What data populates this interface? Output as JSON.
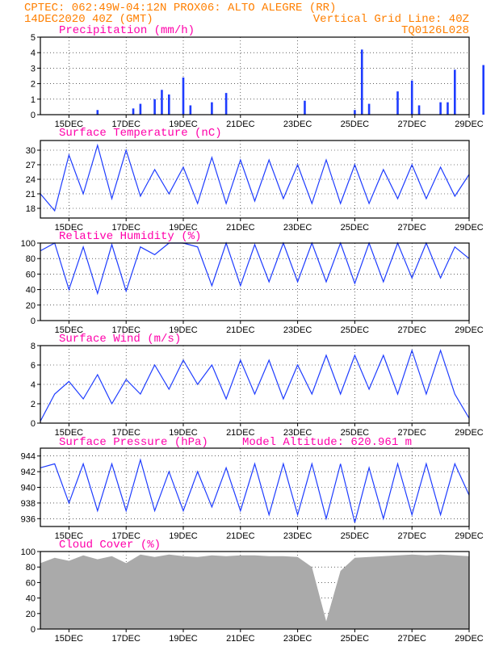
{
  "header": {
    "line1_left": "CPTEC:  062:49W-04:12N  PROX06: ALTO ALEGRE (RR)",
    "line2_left": "14DEC2020 40Z (GMT)",
    "line2_right": "Vertical Grid Line: 40Z",
    "line3_right": "TQ0126L028"
  },
  "colors": {
    "header": "#ff7f00",
    "panel_title": "#ff00aa",
    "series": "#1e3cff",
    "cloud": "#aaaaaa",
    "grid": "#000000"
  },
  "x_labels": [
    "15DEC",
    "17DEC",
    "19DEC",
    "21DEC",
    "23DEC",
    "25DEC",
    "27DEC",
    "29DEC"
  ],
  "chart_data": [
    {
      "type": "bar",
      "title": "Precipitation (mm/h)",
      "ylim": [
        0,
        5
      ],
      "yticks": [
        "0",
        "1",
        "2",
        "3",
        "4",
        "5"
      ],
      "x": [
        "16DEC",
        "17DEC",
        "17DEC",
        "18DEC",
        "18DEC",
        "18DEC",
        "19DEC",
        "19DEC",
        "20DEC",
        "20DEC",
        "23DEC",
        "25DEC",
        "25DEC",
        "25DEC",
        "26DEC",
        "27DEC",
        "27DEC",
        "28DEC",
        "28DEC",
        "28DEC",
        "29DEC"
      ],
      "values": [
        0.3,
        0.4,
        0.7,
        1.0,
        1.6,
        1.3,
        2.4,
        0.6,
        1.4,
        0.8,
        0.9,
        0.7,
        0.3,
        4.2,
        1.5,
        2.2,
        0.6,
        2.9,
        0.8,
        0.8,
        3.2
      ]
    },
    {
      "type": "line",
      "title": "Surface Temperature (nC)",
      "ylim": [
        16,
        32
      ],
      "yticks": [
        "18",
        "21",
        "24",
        "27",
        "30"
      ],
      "x_day": [
        14.0,
        14.5,
        15.0,
        15.5,
        16.0,
        16.5,
        17.0,
        17.5,
        18.0,
        18.5,
        19.0,
        19.5,
        20.0,
        20.5,
        21.0,
        21.5,
        22.0,
        22.5,
        23.0,
        23.5,
        24.0,
        24.5,
        25.0,
        25.5,
        26.0,
        26.5,
        27.0,
        27.5,
        28.0,
        28.5,
        29.0
      ],
      "values": [
        21,
        17.5,
        29,
        21,
        31,
        20,
        30,
        20.5,
        26,
        21,
        26.5,
        19,
        28.5,
        19,
        28,
        19.5,
        28,
        20,
        27,
        19,
        28,
        19,
        27,
        19,
        26,
        20,
        27,
        20,
        26.5,
        20.5,
        25
      ]
    },
    {
      "type": "line",
      "title": "Relative Humidity (%)",
      "ylim": [
        0,
        100
      ],
      "yticks": [
        "0",
        "20",
        "40",
        "60",
        "80",
        "100"
      ],
      "x_day": [
        14.0,
        14.5,
        15.0,
        15.5,
        16.0,
        16.5,
        17.0,
        17.5,
        18.0,
        18.5,
        19.0,
        19.5,
        20.0,
        20.5,
        21.0,
        21.5,
        22.0,
        22.5,
        23.0,
        23.5,
        24.0,
        24.5,
        25.0,
        25.5,
        26.0,
        26.5,
        27.0,
        27.5,
        28.0,
        28.5,
        29.0
      ],
      "values": [
        90,
        100,
        40,
        95,
        35,
        98,
        38,
        95,
        85,
        100,
        100,
        95,
        45,
        100,
        45,
        98,
        50,
        100,
        50,
        100,
        50,
        100,
        48,
        100,
        50,
        100,
        55,
        100,
        55,
        95,
        80
      ]
    },
    {
      "type": "line",
      "title": "Surface Wind (m/s)",
      "ylim": [
        0,
        8
      ],
      "yticks": [
        "0",
        "2",
        "4",
        "6",
        "8"
      ],
      "x_day": [
        14.0,
        14.5,
        15.0,
        15.5,
        16.0,
        16.5,
        17.0,
        17.5,
        18.0,
        18.5,
        19.0,
        19.5,
        20.0,
        20.5,
        21.0,
        21.5,
        22.0,
        22.5,
        23.0,
        23.5,
        24.0,
        24.5,
        25.0,
        25.5,
        26.0,
        26.5,
        27.0,
        27.5,
        28.0,
        28.5,
        29.0
      ],
      "values": [
        0.2,
        3.0,
        4.3,
        2.5,
        5.0,
        2.0,
        4.5,
        3.0,
        6.0,
        3.5,
        6.5,
        4.0,
        6.0,
        2.5,
        6.5,
        3.0,
        6.5,
        2.5,
        6.0,
        3.0,
        7.0,
        3.0,
        7.0,
        3.5,
        7.0,
        3.0,
        7.5,
        3.0,
        7.5,
        3.0,
        0.5
      ]
    },
    {
      "type": "line",
      "title": "Surface Pressure (hPa)",
      "annotation": "Model Altitude: 620.961 m",
      "ylim": [
        935,
        945
      ],
      "yticks": [
        "936",
        "938",
        "940",
        "942",
        "944"
      ],
      "x_day": [
        14.0,
        14.5,
        15.0,
        15.5,
        16.0,
        16.5,
        17.0,
        17.5,
        18.0,
        18.5,
        19.0,
        19.5,
        20.0,
        20.5,
        21.0,
        21.5,
        22.0,
        22.5,
        23.0,
        23.5,
        24.0,
        24.5,
        25.0,
        25.5,
        26.0,
        26.5,
        27.0,
        27.5,
        28.0,
        28.5,
        29.0
      ],
      "values": [
        942.5,
        943,
        938,
        943,
        937,
        943,
        937,
        943.5,
        937,
        942,
        937,
        942,
        937.5,
        942.5,
        937,
        943,
        936.5,
        943,
        936.5,
        943,
        936,
        943,
        935.5,
        942.5,
        936,
        943,
        936.5,
        943,
        936.5,
        943,
        939
      ]
    },
    {
      "type": "area",
      "title": "Cloud Cover (%)",
      "ylim": [
        0,
        100
      ],
      "yticks": [
        "0",
        "20",
        "40",
        "60",
        "80",
        "100"
      ],
      "x_day": [
        14.0,
        14.5,
        15.0,
        15.5,
        16.0,
        16.5,
        17.0,
        17.5,
        18.0,
        18.5,
        19.0,
        19.5,
        20.0,
        20.5,
        21.0,
        21.5,
        22.0,
        22.5,
        23.0,
        23.5,
        24.0,
        24.5,
        25.0,
        25.5,
        26.0,
        26.5,
        27.0,
        27.5,
        28.0,
        28.5,
        29.0
      ],
      "values": [
        85,
        92,
        88,
        95,
        90,
        94,
        85,
        96,
        93,
        96,
        94,
        93,
        95,
        94,
        95,
        95,
        94,
        94,
        93,
        80,
        10,
        75,
        92,
        93,
        94,
        95,
        96,
        95,
        96,
        95,
        94
      ]
    }
  ]
}
